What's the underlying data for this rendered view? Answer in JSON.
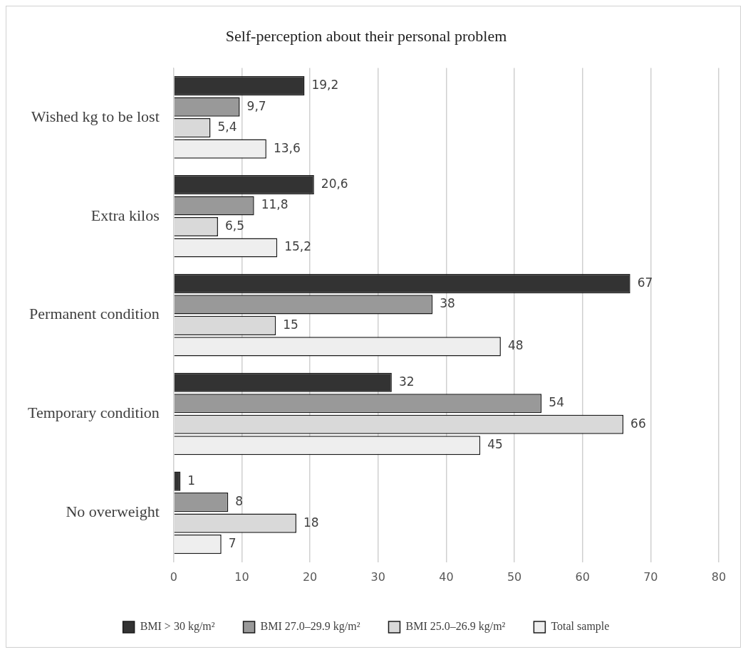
{
  "chart_data": {
    "type": "bar",
    "orientation": "horizontal",
    "title": "Self-perception about their personal problem",
    "categories": [
      "Wished kg to be lost",
      "Extra kilos",
      "Permanent condition",
      "Temporary condition",
      "No overweight"
    ],
    "series": [
      {
        "name": "BMI > 30 kg/m²",
        "color": "#333333",
        "values": [
          19.2,
          20.6,
          67,
          32,
          1
        ],
        "value_labels": [
          "19,2",
          "20,6",
          "67",
          "32",
          "1"
        ]
      },
      {
        "name": "BMI 27.0–29.9 kg/m²",
        "color": "#999999",
        "values": [
          9.7,
          11.8,
          38,
          54,
          8
        ],
        "value_labels": [
          "9,7",
          "11,8",
          "38",
          "54",
          "8"
        ]
      },
      {
        "name": "BMI 25.0–26.9 kg/m²",
        "color": "#d9d9d9",
        "values": [
          5.4,
          6.5,
          15,
          66,
          18
        ],
        "value_labels": [
          "5,4",
          "6,5",
          "15",
          "66",
          "18"
        ]
      },
      {
        "name": "Total sample",
        "color": "#eeeeee",
        "values": [
          13.6,
          15.2,
          48,
          45,
          7
        ],
        "value_labels": [
          "13,6",
          "15,2",
          "48",
          "45",
          "7"
        ]
      }
    ],
    "xlim": [
      0,
      80
    ],
    "xticks": [
      0,
      10,
      20,
      30,
      40,
      50,
      60,
      70,
      80
    ],
    "grid": "x",
    "legend": "bottom"
  }
}
